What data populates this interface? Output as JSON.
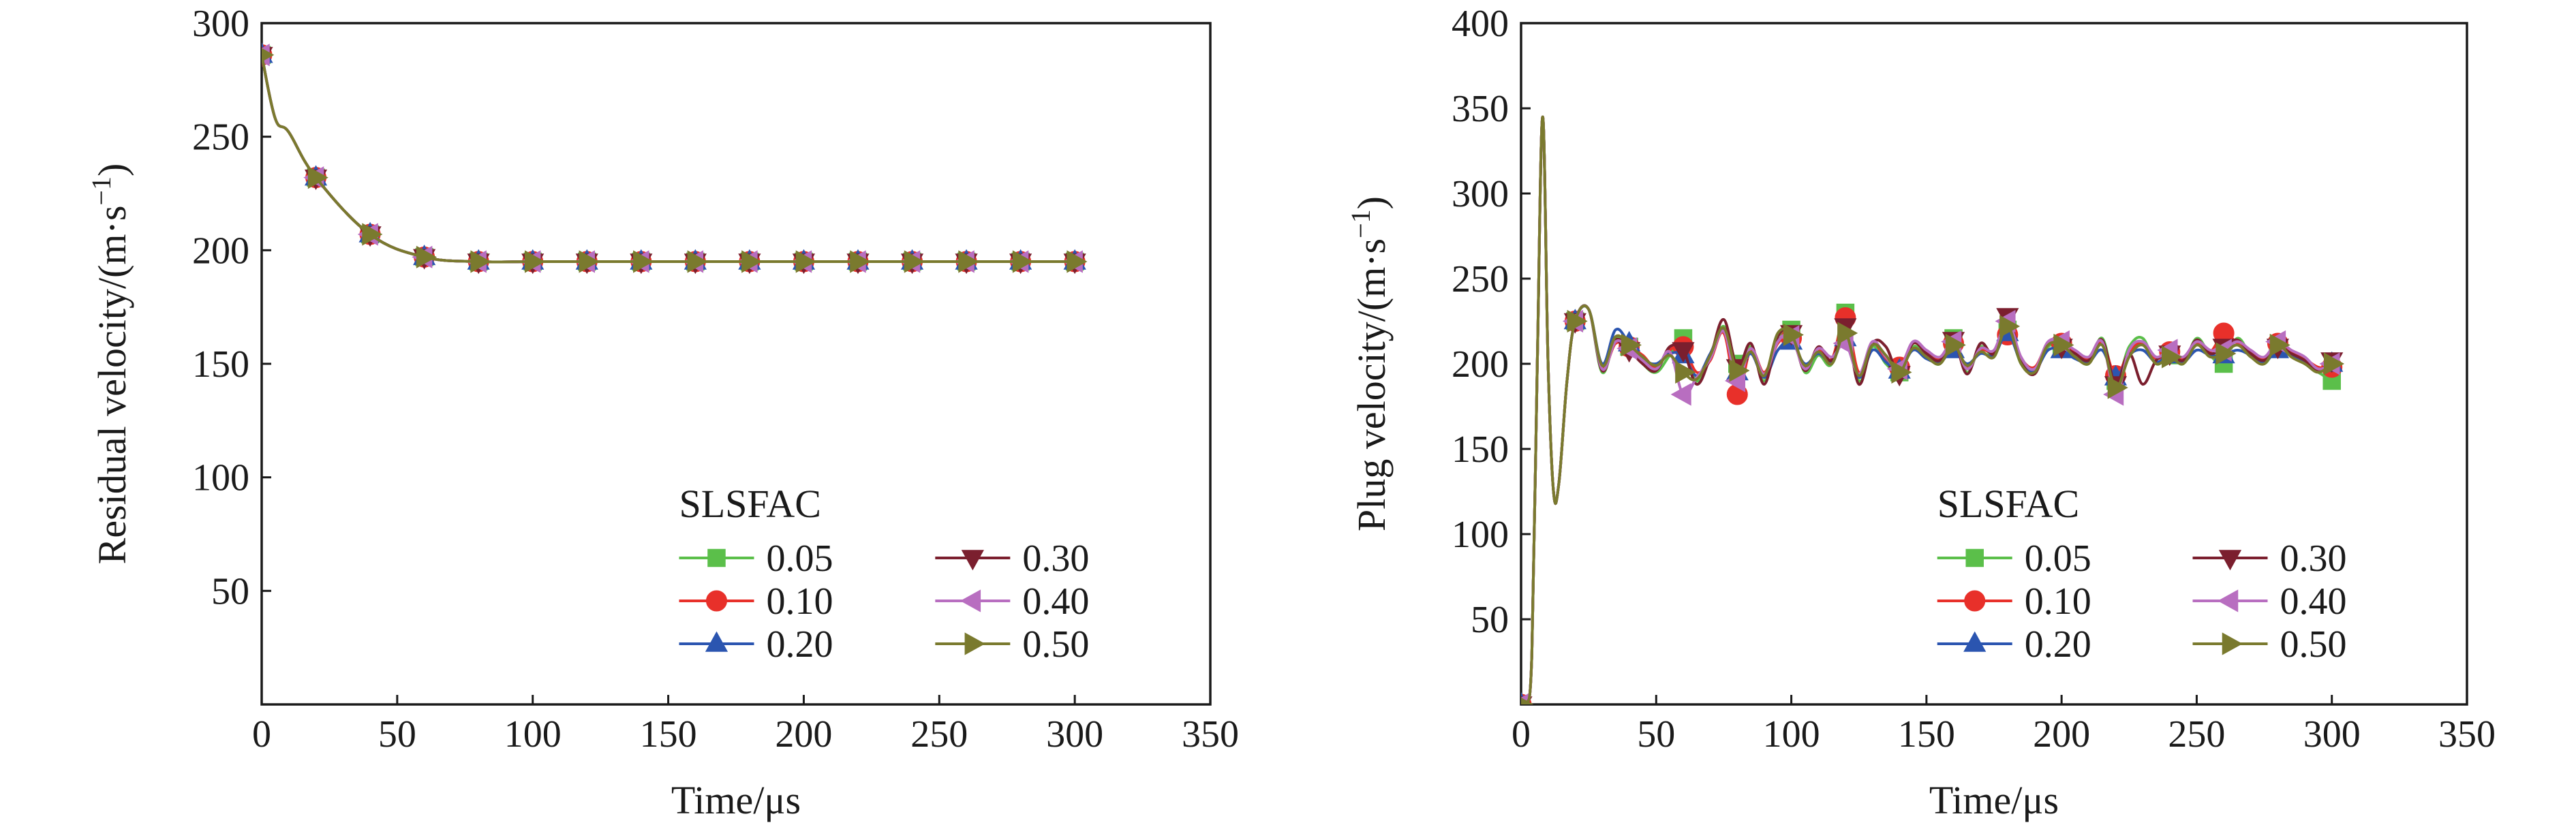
{
  "chart_data": [
    {
      "type": "line",
      "xlabel": "Time/μs",
      "ylabel": "Residual velocity/(m·s",
      "ylabel_sup": "−1",
      "ylabel_close": ")",
      "xlim": [
        0,
        350
      ],
      "ylim": [
        0,
        300
      ],
      "xticks": [
        0,
        50,
        100,
        150,
        200,
        250,
        300,
        350
      ],
      "yticks": [
        50,
        100,
        150,
        200,
        250,
        300
      ],
      "grid": false,
      "legend_title": "SLSFAC",
      "legend_position": "bottom-right",
      "x": [
        0,
        5,
        10,
        20,
        40,
        60,
        80,
        100,
        120,
        140,
        160,
        180,
        200,
        220,
        240,
        260,
        280,
        300
      ],
      "series": [
        {
          "name": "0.05",
          "color": "#5bbf4a",
          "marker": "square",
          "values": [
            286,
            258,
            252,
            232,
            207,
            197,
            195,
            195,
            195,
            195,
            195,
            195,
            195,
            195,
            195,
            195,
            195,
            195
          ]
        },
        {
          "name": "0.10",
          "color": "#e8302a",
          "marker": "circle",
          "values": [
            286,
            258,
            252,
            232,
            207,
            197,
            195,
            195,
            195,
            195,
            195,
            195,
            195,
            195,
            195,
            195,
            195,
            195
          ]
        },
        {
          "name": "0.20",
          "color": "#2b55b0",
          "marker": "triangle-up",
          "values": [
            286,
            258,
            252,
            232,
            207,
            197,
            195,
            195,
            195,
            195,
            195,
            195,
            195,
            195,
            195,
            195,
            195,
            195
          ]
        },
        {
          "name": "0.30",
          "color": "#7b1f2e",
          "marker": "triangle-down",
          "values": [
            286,
            258,
            252,
            232,
            207,
            197,
            195,
            195,
            195,
            195,
            195,
            195,
            195,
            195,
            195,
            195,
            195,
            195
          ]
        },
        {
          "name": "0.40",
          "color": "#b86ec0",
          "marker": "triangle-left",
          "values": [
            286,
            258,
            252,
            232,
            207,
            197,
            195,
            195,
            195,
            195,
            195,
            195,
            195,
            195,
            195,
            195,
            195,
            195
          ]
        },
        {
          "name": "0.50",
          "color": "#7a7a2e",
          "marker": "triangle-right",
          "values": [
            286,
            258,
            252,
            232,
            207,
            197,
            195,
            195,
            195,
            195,
            195,
            195,
            195,
            195,
            195,
            195,
            195,
            195
          ]
        }
      ],
      "marker_x": [
        0,
        20,
        40,
        60,
        80,
        100,
        120,
        140,
        160,
        180,
        200,
        220,
        240,
        260,
        280,
        300
      ]
    },
    {
      "type": "line",
      "xlabel": "Time/μs",
      "ylabel": "Plug velocity/(m·s",
      "ylabel_sup": "−1",
      "ylabel_close": ")",
      "xlim": [
        0,
        350
      ],
      "ylim": [
        0,
        400
      ],
      "xticks": [
        0,
        50,
        100,
        150,
        200,
        250,
        300,
        350
      ],
      "yticks": [
        50,
        100,
        150,
        200,
        250,
        300,
        350,
        400
      ],
      "grid": false,
      "legend_title": "SLSFAC",
      "legend_position": "bottom-right",
      "x": [
        0,
        2,
        4,
        6,
        8,
        10,
        12,
        14,
        17,
        20,
        25,
        30,
        35,
        40,
        45,
        50,
        55,
        60,
        65,
        70,
        75,
        80,
        85,
        90,
        95,
        100,
        105,
        110,
        115,
        120,
        125,
        130,
        135,
        140,
        145,
        150,
        155,
        160,
        165,
        170,
        175,
        180,
        185,
        190,
        195,
        200,
        205,
        210,
        215,
        220,
        225,
        230,
        235,
        240,
        245,
        250,
        255,
        260,
        265,
        270,
        275,
        280,
        285,
        290,
        295,
        300
      ],
      "series": [
        {
          "name": "0.05",
          "color": "#5bbf4a",
          "marker": "square",
          "values": [
            0,
            0,
            30,
            200,
            345,
            200,
            125,
            130,
            190,
            225,
            232,
            195,
            215,
            210,
            200,
            195,
            205,
            215,
            190,
            205,
            222,
            200,
            210,
            190,
            215,
            220,
            195,
            205,
            200,
            230,
            190,
            210,
            200,
            195,
            210,
            205,
            200,
            215,
            195,
            210,
            205,
            220,
            200,
            195,
            210,
            210,
            205,
            200,
            215,
            190,
            210,
            215,
            200,
            205,
            200,
            215,
            205,
            200,
            215,
            205,
            200,
            210,
            205,
            200,
            195,
            190
          ]
        },
        {
          "name": "0.10",
          "color": "#e8302a",
          "marker": "circle",
          "values": [
            0,
            0,
            30,
            200,
            345,
            200,
            125,
            130,
            190,
            225,
            232,
            198,
            212,
            210,
            205,
            198,
            208,
            210,
            195,
            202,
            218,
            182,
            208,
            195,
            212,
            215,
            198,
            208,
            203,
            227,
            195,
            212,
            203,
            198,
            212,
            207,
            203,
            212,
            198,
            208,
            207,
            217,
            203,
            198,
            212,
            212,
            207,
            203,
            212,
            193,
            207,
            212,
            203,
            207,
            203,
            212,
            207,
            218,
            212,
            207,
            203,
            212,
            207,
            203,
            198,
            198
          ]
        },
        {
          "name": "0.20",
          "color": "#2b55b0",
          "marker": "triangle-up",
          "values": [
            0,
            0,
            30,
            200,
            345,
            200,
            125,
            130,
            190,
            225,
            232,
            200,
            220,
            212,
            203,
            200,
            206,
            205,
            193,
            206,
            220,
            195,
            206,
            192,
            208,
            213,
            200,
            206,
            201,
            215,
            192,
            208,
            201,
            196,
            208,
            203,
            201,
            208,
            200,
            206,
            205,
            218,
            201,
            196,
            208,
            208,
            203,
            201,
            208,
            192,
            205,
            208,
            201,
            205,
            201,
            208,
            205,
            205,
            208,
            205,
            201,
            208,
            205,
            201,
            196,
            200
          ]
        },
        {
          "name": "0.30",
          "color": "#7b1f2e",
          "marker": "triangle-down",
          "values": [
            0,
            0,
            30,
            200,
            345,
            200,
            125,
            130,
            190,
            225,
            232,
            196,
            214,
            208,
            200,
            196,
            210,
            208,
            188,
            204,
            226,
            198,
            212,
            188,
            216,
            218,
            196,
            210,
            202,
            222,
            188,
            212,
            210,
            194,
            212,
            206,
            202,
            214,
            194,
            212,
            206,
            228,
            202,
            194,
            212,
            210,
            206,
            202,
            214,
            188,
            206,
            188,
            202,
            206,
            202,
            214,
            206,
            210,
            214,
            206,
            202,
            210,
            206,
            202,
            196,
            202
          ]
        },
        {
          "name": "0.40",
          "color": "#b86ec0",
          "marker": "triangle-left",
          "values": [
            0,
            0,
            30,
            200,
            345,
            200,
            125,
            130,
            190,
            225,
            232,
            197,
            213,
            209,
            202,
            197,
            207,
            182,
            192,
            203,
            219,
            190,
            209,
            194,
            213,
            216,
            197,
            209,
            204,
            212,
            194,
            213,
            204,
            197,
            213,
            208,
            204,
            213,
            197,
            209,
            208,
            225,
            204,
            197,
            213,
            213,
            208,
            204,
            213,
            182,
            208,
            213,
            204,
            208,
            204,
            213,
            208,
            208,
            213,
            208,
            204,
            213,
            208,
            204,
            197,
            200
          ]
        },
        {
          "name": "0.50",
          "color": "#7a7a2e",
          "marker": "triangle-right",
          "values": [
            0,
            0,
            30,
            200,
            345,
            200,
            125,
            130,
            190,
            225,
            232,
            199,
            216,
            211,
            204,
            199,
            205,
            195,
            191,
            205,
            221,
            196,
            207,
            193,
            218,
            217,
            199,
            207,
            200,
            218,
            193,
            211,
            205,
            195,
            209,
            204,
            200,
            211,
            199,
            207,
            204,
            222,
            200,
            195,
            211,
            211,
            204,
            200,
            211,
            186,
            204,
            211,
            200,
            204,
            200,
            211,
            204,
            206,
            211,
            204,
            200,
            211,
            204,
            200,
            195,
            200
          ]
        }
      ],
      "marker_x": [
        0,
        20,
        40,
        60,
        80,
        100,
        120,
        140,
        160,
        180,
        200,
        220,
        240,
        260,
        280,
        300
      ]
    }
  ]
}
